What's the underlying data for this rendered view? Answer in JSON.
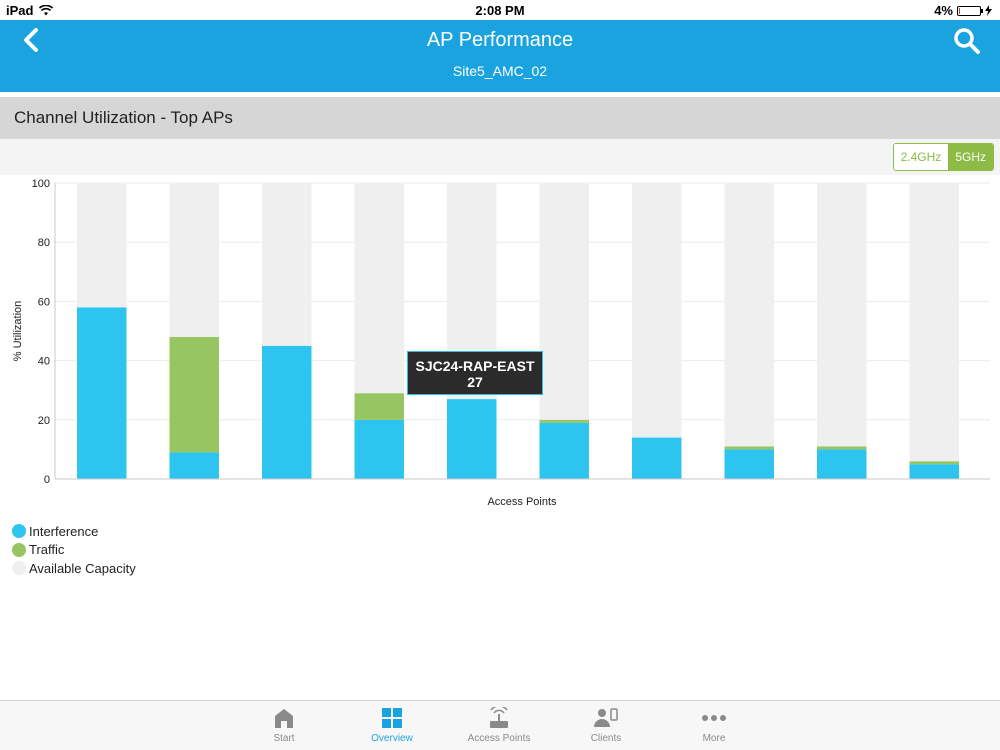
{
  "status_bar": {
    "device": "iPad",
    "time": "2:08 PM",
    "battery": "4%",
    "battery_level": 0.04
  },
  "header": {
    "title": "AP Performance",
    "subtitle": "Site5_AMC_02"
  },
  "section": {
    "title": "Channel Utilization - Top APs"
  },
  "band_toggle": {
    "options": [
      "2.4GHz",
      "5GHz"
    ],
    "selected": "5GHz"
  },
  "colors": {
    "interference": "#2ec4f0",
    "traffic": "#96c562",
    "available": "#efefef",
    "accent": "#1ba3e0"
  },
  "chart_data": {
    "type": "bar",
    "stacked": true,
    "categories": [
      "",
      "",
      "",
      "",
      "",
      "",
      "",
      "",
      "",
      ""
    ],
    "series": [
      {
        "name": "Interference",
        "values": [
          58,
          9,
          45,
          20,
          27,
          19,
          14,
          10,
          10,
          5
        ]
      },
      {
        "name": "Traffic",
        "values": [
          0,
          39,
          0,
          9,
          0,
          1,
          0,
          1,
          1,
          1
        ]
      },
      {
        "name": "Available Capacity",
        "values": [
          42,
          52,
          55,
          71,
          73,
          80,
          86,
          89,
          89,
          94
        ]
      }
    ],
    "xlabel": "Access Points",
    "ylabel": "% Utilization",
    "ylim": [
      0,
      100
    ],
    "yticks": [
      0,
      20,
      40,
      60,
      80,
      100
    ],
    "grid": true,
    "legend_position": "bottom-left",
    "tooltip": {
      "label": "SJC24-RAP-EAST",
      "value": "27"
    }
  },
  "tabs": [
    {
      "label": "Start",
      "icon": "home-icon",
      "active": false
    },
    {
      "label": "Overview",
      "icon": "grid-icon",
      "active": true
    },
    {
      "label": "Access Points",
      "icon": "access-point-icon",
      "active": false
    },
    {
      "label": "Clients",
      "icon": "clients-icon",
      "active": false
    },
    {
      "label": "More",
      "icon": "more-icon",
      "active": false
    }
  ]
}
